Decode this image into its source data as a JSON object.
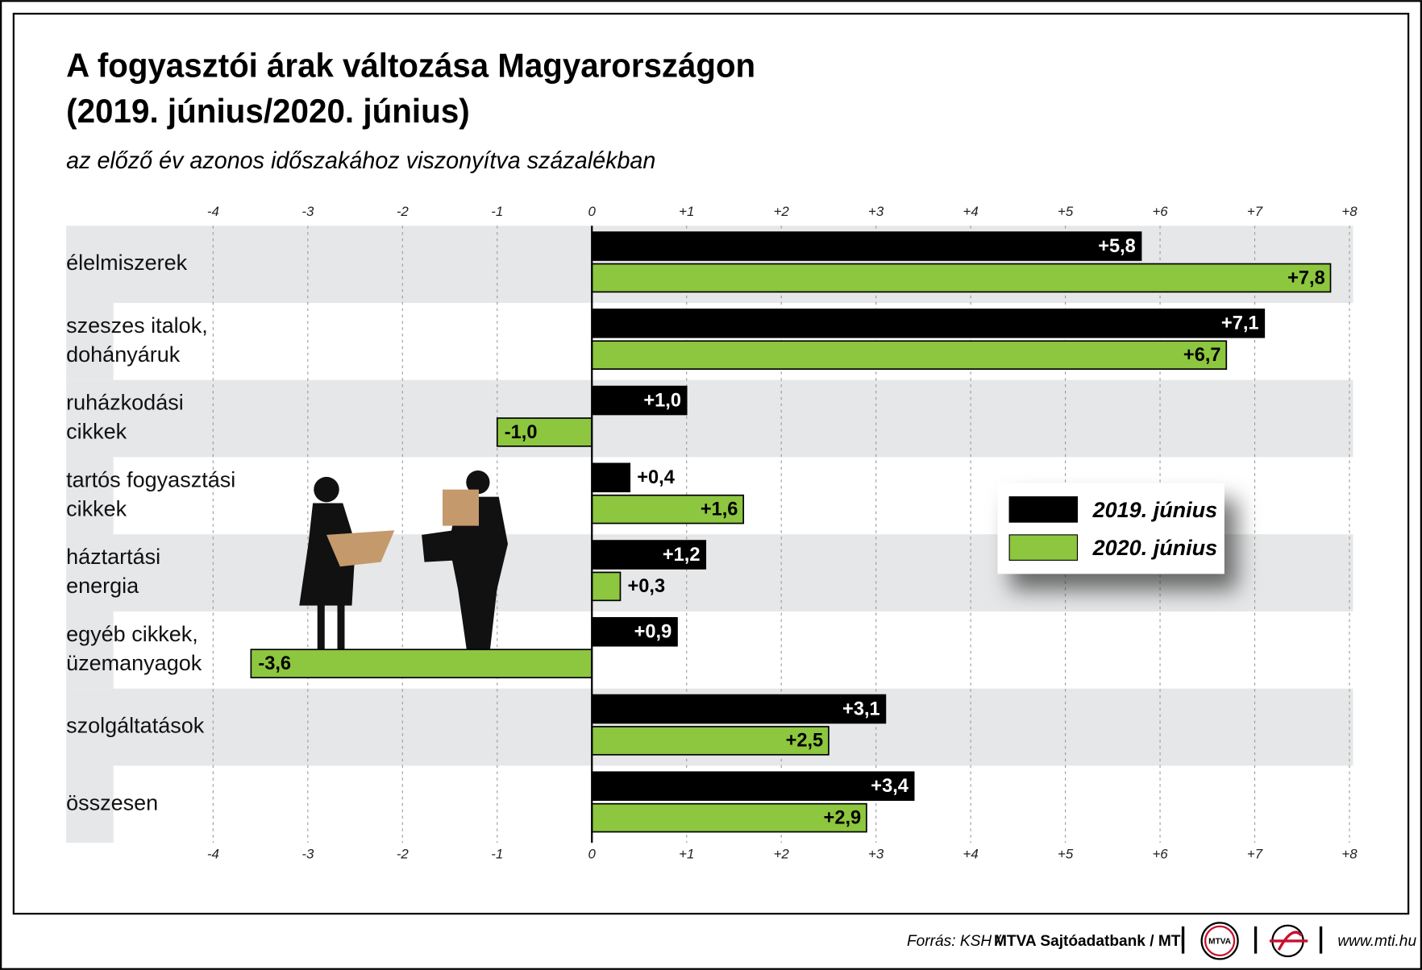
{
  "chart_data": {
    "type": "bar",
    "orientation": "horizontal",
    "title": [
      "A fogyasztói árak változása Magyarországon",
      "(2019. június/2020. június)"
    ],
    "subtitle": "az előző év azonos időszakához viszonyítva százalékban",
    "categories": [
      "élelmiszerek",
      "szeszes italok,\ndohányáruk",
      "ruházkodási\ncikkek",
      "tartós fogyasztási\ncikkek",
      "háztartási\nenergia",
      "egyéb cikkek,\nüzemanyagok",
      "szolgáltatások",
      "összesen"
    ],
    "series": [
      {
        "name": "2019. június",
        "color": "#000000",
        "values": [
          5.8,
          7.1,
          1.0,
          0.4,
          1.2,
          0.9,
          3.1,
          3.4
        ],
        "value_labels": [
          "+5,8",
          "+7,1",
          "+1,0",
          "+0,4",
          "+1,2",
          "+0,9",
          "+3,1",
          "+3,4"
        ]
      },
      {
        "name": "2020. június",
        "color": "#8dc63f",
        "values": [
          7.8,
          6.7,
          -1.0,
          1.6,
          0.3,
          -3.6,
          2.5,
          2.9
        ],
        "value_labels": [
          "+7,8",
          "+6,7",
          "-1,0",
          "+1,6",
          "+0,3",
          "-3,6",
          "+2,5",
          "+2,9"
        ]
      }
    ],
    "xlim": [
      -4,
      8
    ],
    "xticks": [
      -4,
      -3,
      -2,
      -1,
      0,
      {
        "value": 1,
        "label": "+1"
      },
      {
        "value": 2,
        "label": "+2"
      },
      {
        "value": 3,
        "label": "+3"
      },
      {
        "value": 4,
        "label": "+4"
      },
      {
        "value": 5,
        "label": "+5"
      },
      {
        "value": 6,
        "label": "+6"
      },
      {
        "value": 7,
        "label": "+7"
      },
      {
        "value": 8,
        "label": "+8"
      }
    ],
    "grid": true,
    "legend": "right"
  },
  "footer": {
    "source": "Forrás: KSH /",
    "agency": "MTVA Sajtóadatbank / MTI",
    "logo": "MTVA",
    "url": "www.mti.hu"
  }
}
